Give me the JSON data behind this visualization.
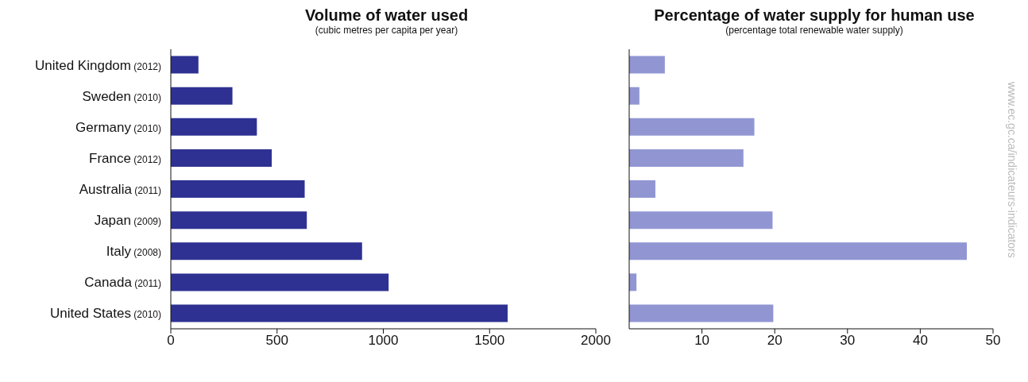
{
  "chart_data": [
    {
      "type": "bar",
      "orientation": "horizontal",
      "title": "Volume of water used",
      "subtitle": "(cubic metres per capita per year)",
      "categories": [
        "United Kingdom (2012)",
        "Sweden (2010)",
        "Germany (2010)",
        "France (2012)",
        "Australia (2011)",
        "Japan (2009)",
        "Italy (2008)",
        "Canada (2011)",
        "United States (2010)"
      ],
      "values": [
        130,
        290,
        405,
        475,
        630,
        640,
        900,
        1025,
        1585
      ],
      "color": "#2e3192",
      "xlim": [
        0,
        2000
      ],
      "xticks": [
        0,
        500,
        1000,
        1500,
        2000
      ],
      "grid": false,
      "legend": false
    },
    {
      "type": "bar",
      "orientation": "horizontal",
      "title": "Percentage of water supply for human use",
      "subtitle": "(percentage total renewable water supply)",
      "categories": [
        null,
        null,
        null,
        null,
        null,
        null,
        null,
        null,
        null
      ],
      "values": [
        4.9,
        1.4,
        17.2,
        15.7,
        3.6,
        19.7,
        46.4,
        1.0,
        19.8
      ],
      "color": "#9196d3",
      "xlim": [
        0,
        50
      ],
      "xticks": [
        10,
        20,
        30,
        40,
        50
      ],
      "grid": false,
      "legend": false,
      "tick_labels": "x",
      "annotations": [
        "www.ec.gc.ca/indicateurs-indicators"
      ]
    }
  ]
}
